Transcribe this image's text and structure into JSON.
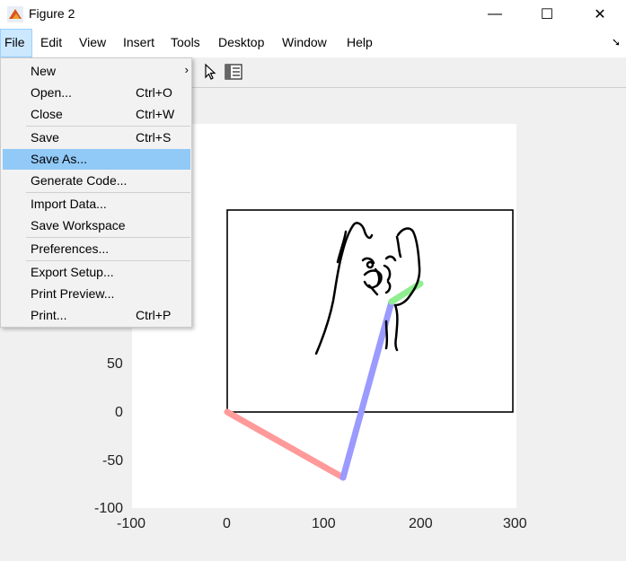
{
  "window": {
    "title": "Figure 2",
    "minimize": "—",
    "maximize": "☐",
    "close": "✕"
  },
  "menubar": [
    "File",
    "Edit",
    "View",
    "Insert",
    "Tools",
    "Desktop",
    "Window",
    "Help"
  ],
  "file_menu": {
    "items": [
      {
        "label": "New",
        "shortcut": "",
        "submenu": true
      },
      {
        "label": "Open...",
        "shortcut": "Ctrl+O"
      },
      {
        "label": "Close",
        "shortcut": "Ctrl+W"
      },
      {
        "label": "Save",
        "shortcut": "Ctrl+S"
      },
      {
        "label": "Save As...",
        "shortcut": "",
        "highlighted": true
      },
      {
        "label": "Generate Code...",
        "shortcut": ""
      },
      {
        "label": "Import Data...",
        "shortcut": ""
      },
      {
        "label": "Save Workspace",
        "shortcut": ""
      },
      {
        "label": "Preferences...",
        "shortcut": ""
      },
      {
        "label": "Export Setup...",
        "shortcut": ""
      },
      {
        "label": "Print Preview...",
        "shortcut": ""
      },
      {
        "label": "Print...",
        "shortcut": "Ctrl+P"
      }
    ],
    "submenu_glyph": "›"
  },
  "axes": {
    "xticks": [
      "-100",
      "0",
      "100",
      "200",
      "300"
    ],
    "yticks": [
      "50",
      "0",
      "-50",
      "-100"
    ]
  },
  "colors": {
    "highlight": "#91c9f7",
    "segment1": "#ff9a9a",
    "segment2": "#9a9aff",
    "segment3": "#90ee90"
  }
}
